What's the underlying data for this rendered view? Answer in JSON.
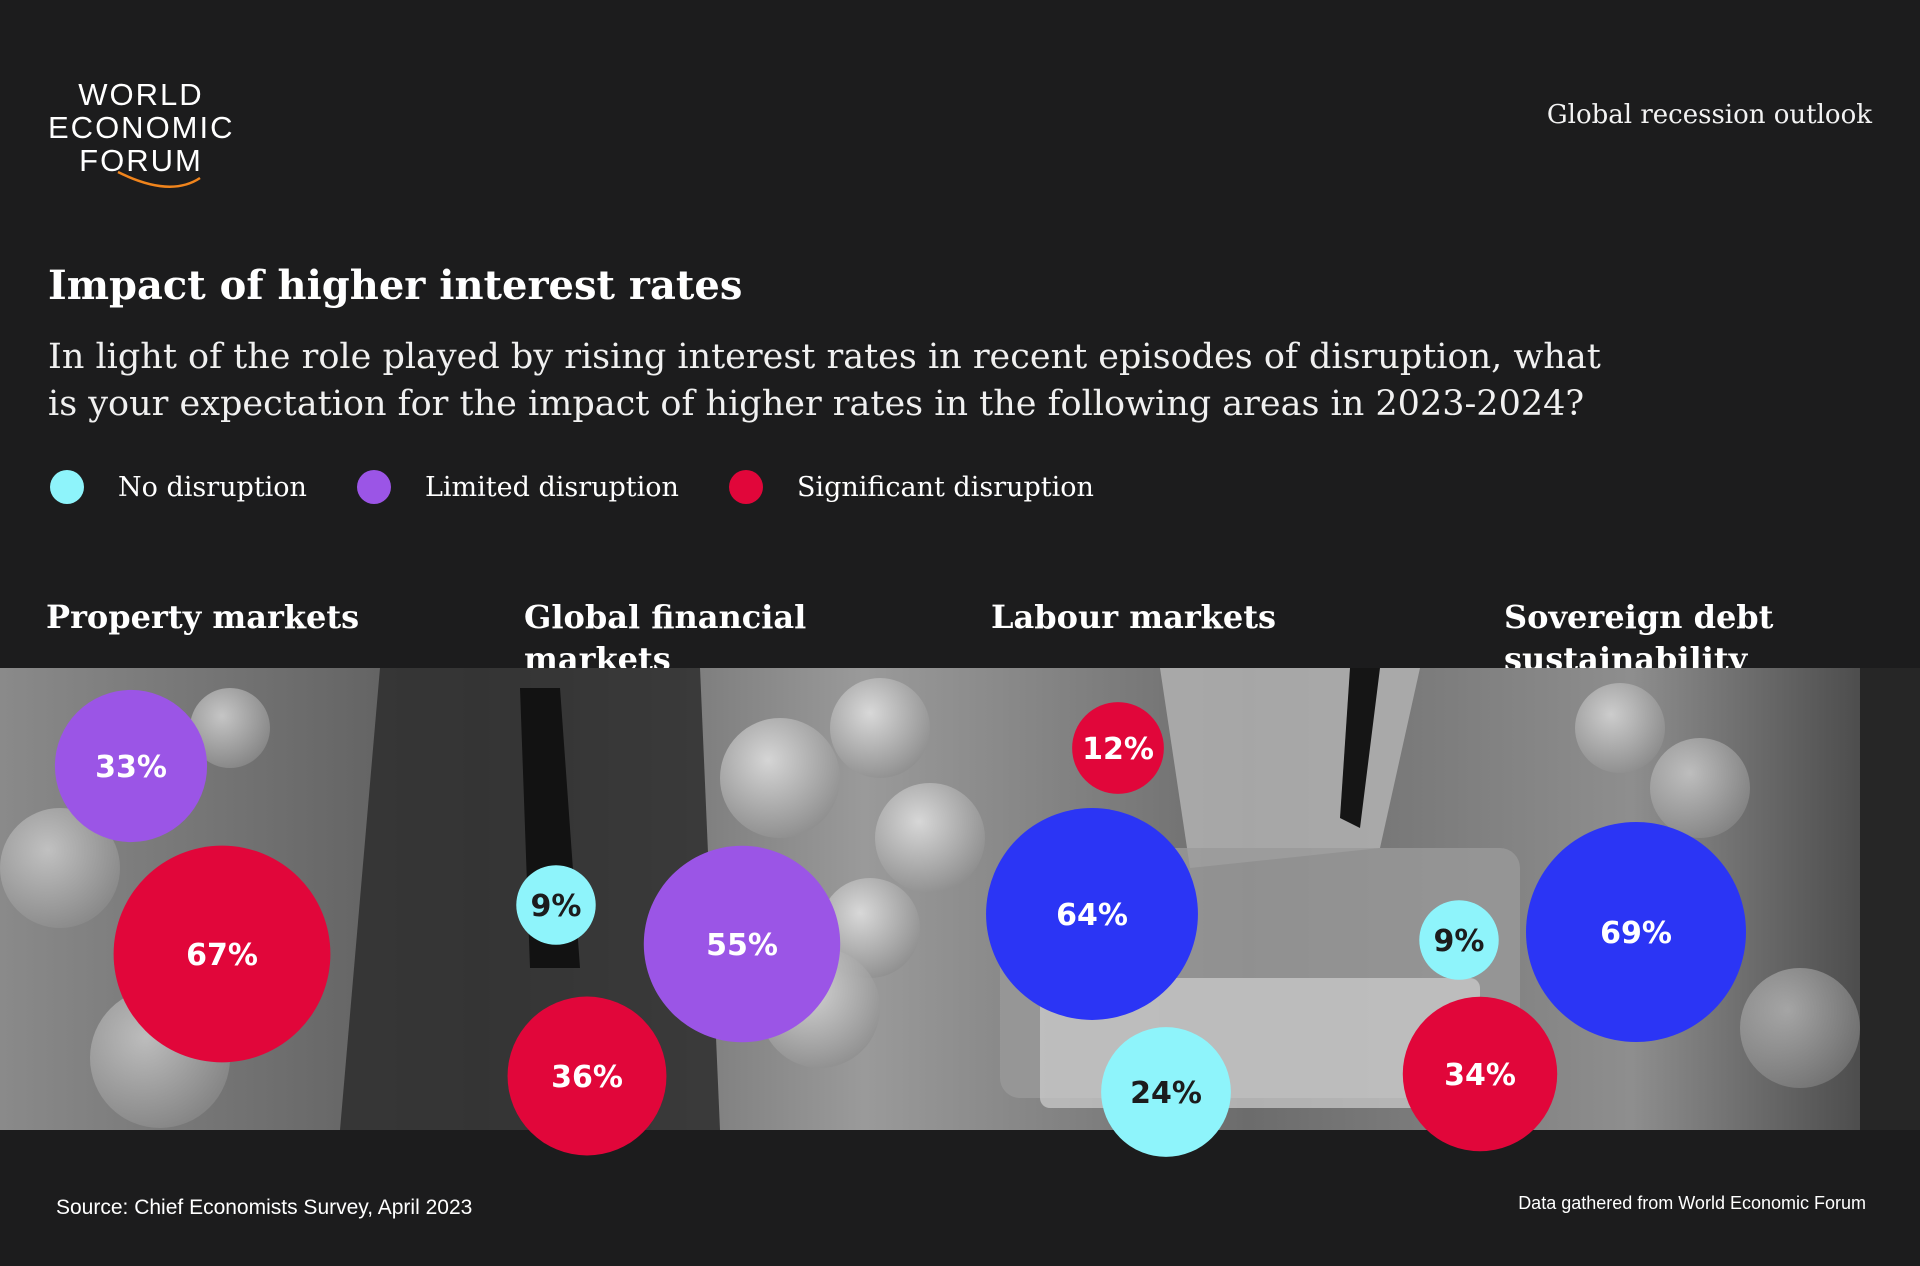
{
  "header": {
    "logo_lines": [
      "WORLD",
      "ECONOMIC",
      "FORUM"
    ],
    "topic": "Global recession outlook"
  },
  "chart_data": {
    "type": "bubble",
    "title": "Impact of higher interest rates",
    "subtitle": "In light of the role played by rising interest rates in recent episodes of disruption, what is your expectation for the impact of higher rates in the following areas in 2023-2024?",
    "legend": [
      {
        "label": "No disruption",
        "color": "#8ef4fb"
      },
      {
        "label": "Limited disruption",
        "color": "#9b55e6"
      },
      {
        "label": "Significant disruption",
        "color": "#e1063a"
      }
    ],
    "categories": [
      {
        "name": "Property markets",
        "bubbles": [
          {
            "label": "33%",
            "value": 33,
            "color": "#9b55e6"
          },
          {
            "label": "67%",
            "value": 67,
            "color": "#e1063a"
          }
        ]
      },
      {
        "name": "Global financial markets",
        "bubbles": [
          {
            "label": "9%",
            "value": 9,
            "color": "#8ef4fb"
          },
          {
            "label": "55%",
            "value": 55,
            "color": "#9b55e6"
          },
          {
            "label": "36%",
            "value": 36,
            "color": "#e1063a"
          }
        ]
      },
      {
        "name": "Labour markets",
        "bubbles": [
          {
            "label": "12%",
            "value": 12,
            "color": "#e1063a"
          },
          {
            "label": "64%",
            "value": 64,
            "color": "#2b35f5"
          },
          {
            "label": "24%",
            "value": 24,
            "color": "#8ef4fb"
          }
        ]
      },
      {
        "name": "Sovereign debt sustainability",
        "bubbles": [
          {
            "label": "9%",
            "value": 9,
            "color": "#8ef4fb"
          },
          {
            "label": "69%",
            "value": 69,
            "color": "#2b35f5"
          },
          {
            "label": "34%",
            "value": 34,
            "color": "#e1063a"
          }
        ]
      }
    ]
  },
  "footer": {
    "source": "Source: Chief Economists Survey, April 2023",
    "credit": "Data gathered from World Economic Forum"
  }
}
